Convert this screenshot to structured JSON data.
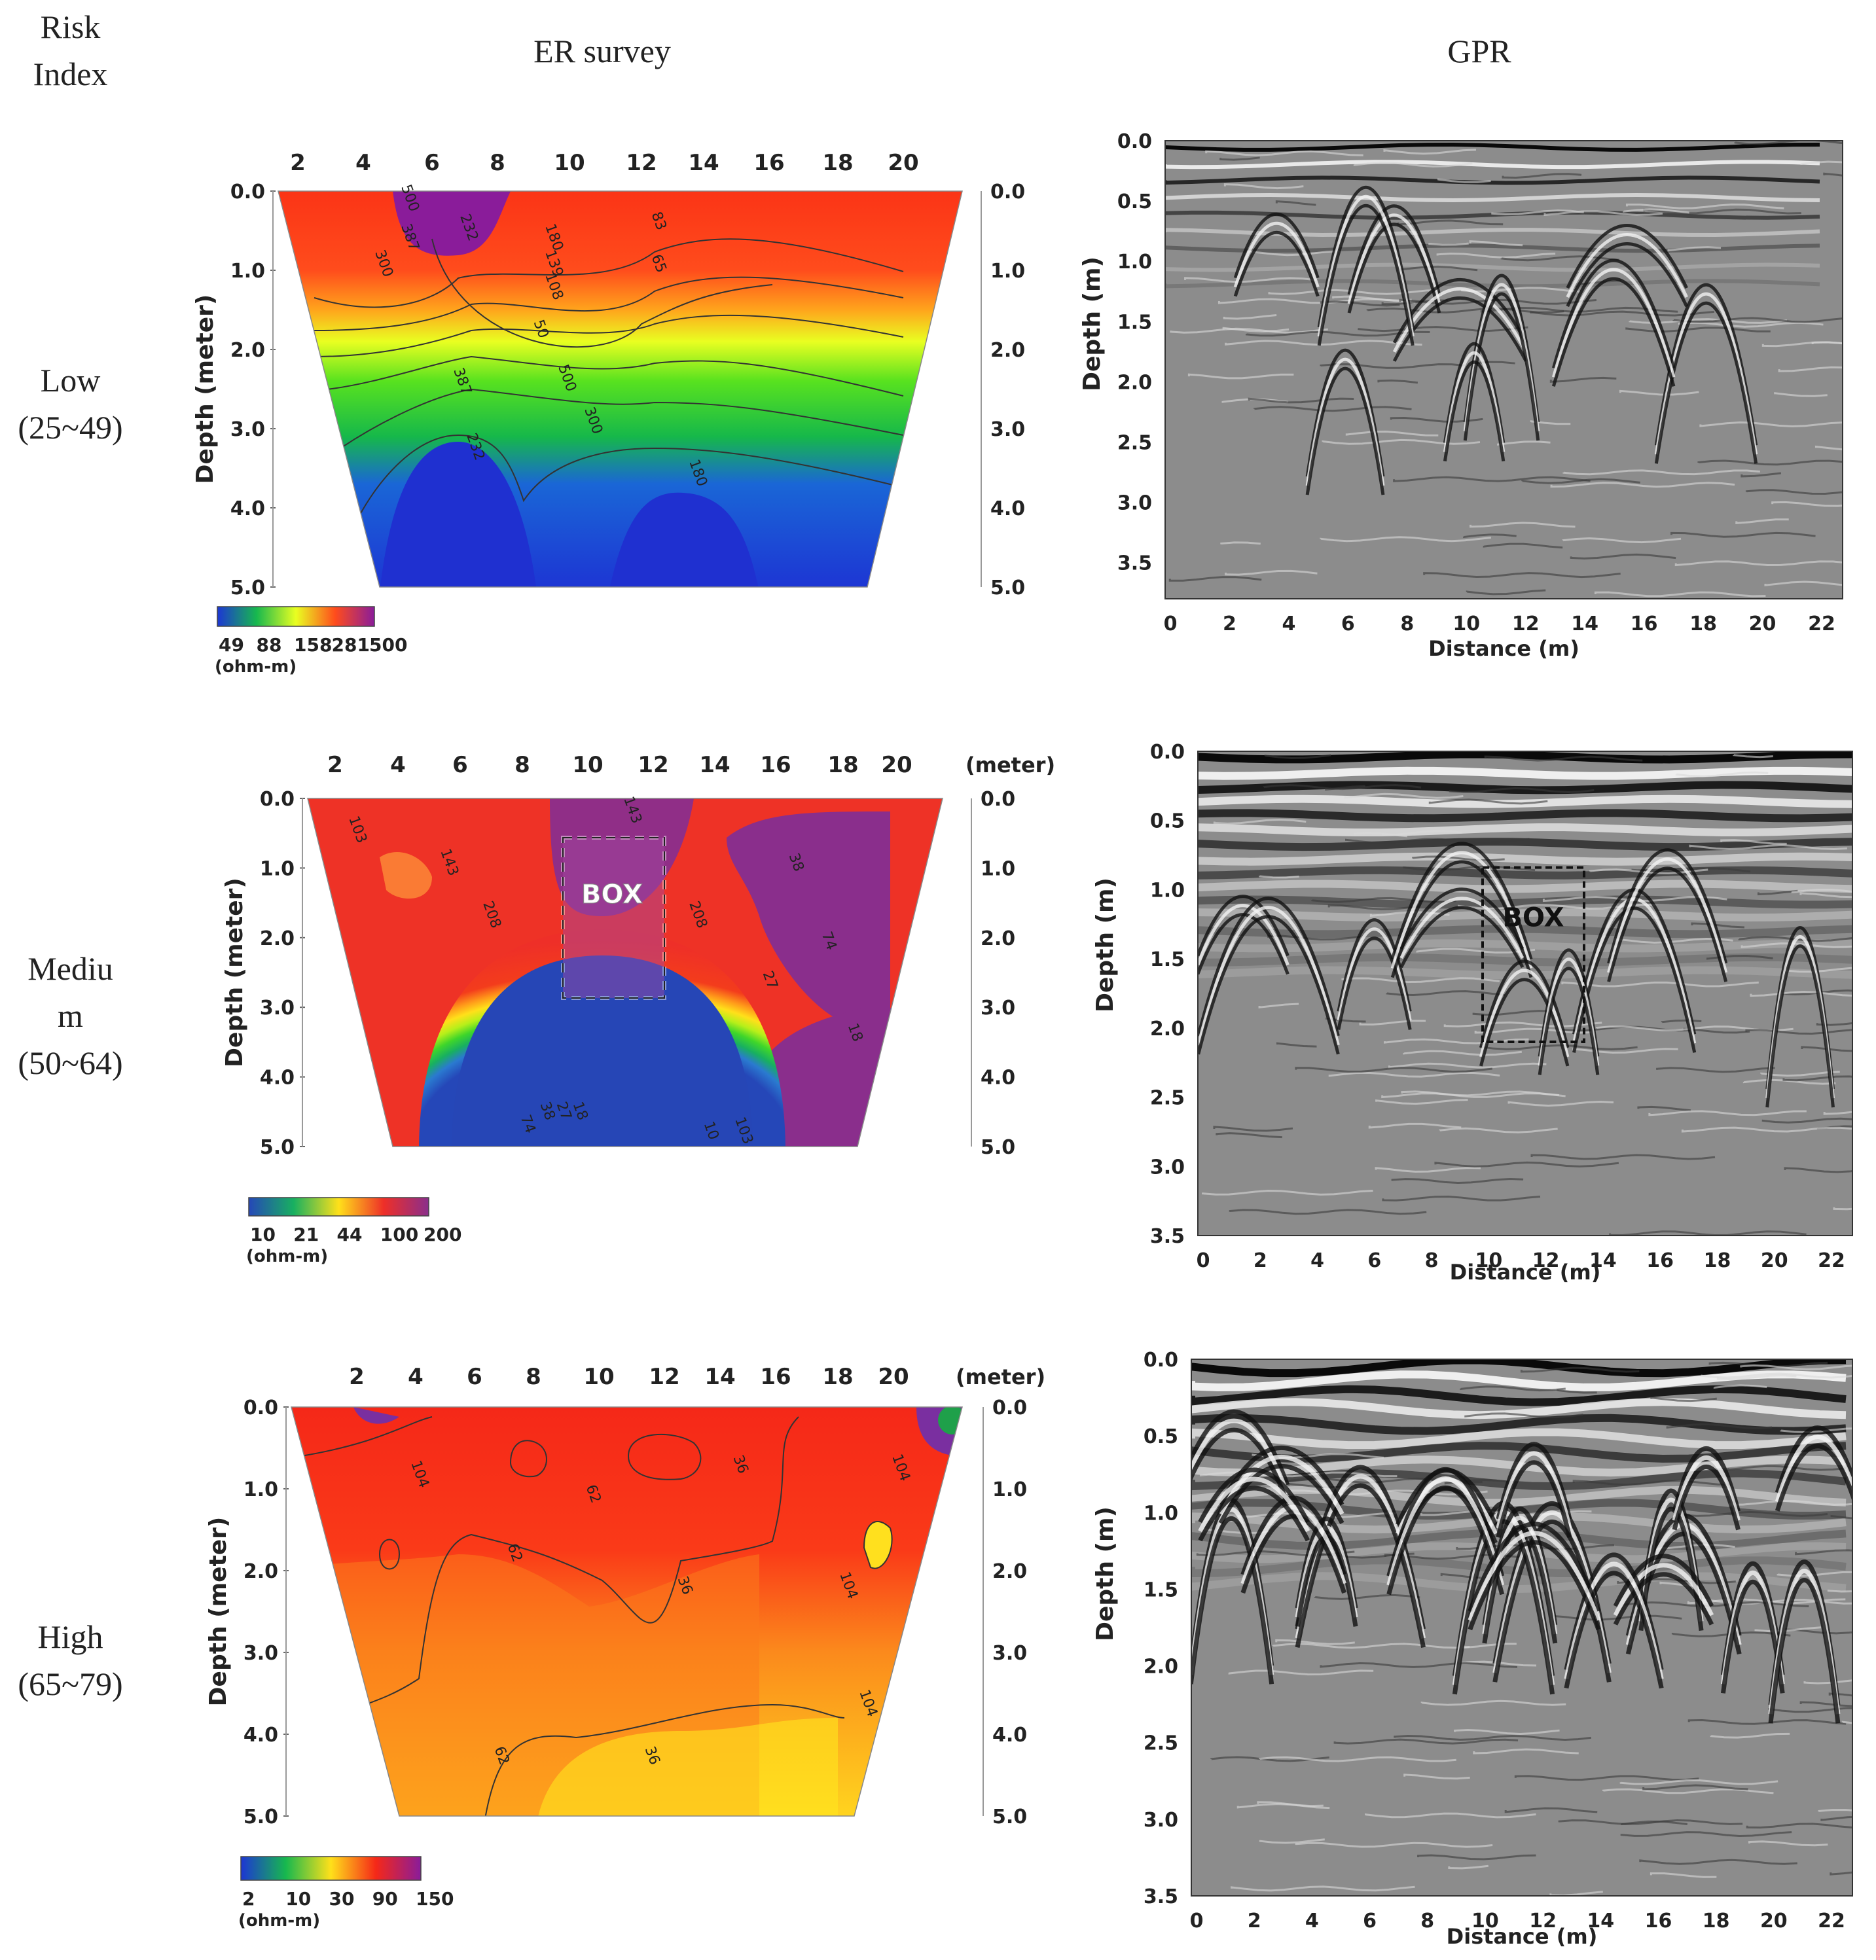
{
  "headers": {
    "risk_line1": "Risk",
    "risk_line2": "Index",
    "er": "ER survey",
    "gpr": "GPR"
  },
  "rows": [
    {
      "risk": [
        "Low",
        "(25~49)"
      ],
      "er": {
        "top_ticks": [
          "2",
          "4",
          "6",
          "8",
          "10",
          "12",
          "14",
          "16",
          "18",
          "20"
        ],
        "top_unit": "",
        "depth_ticks_left": [
          "0.0",
          "1.0",
          "2.0",
          "3.0",
          "4.0",
          "5.0"
        ],
        "depth_ticks_right": [
          "0.0",
          "1.0",
          "2.0",
          "3.0",
          "4.0",
          "5.0"
        ],
        "ylabel": "Depth (meter)",
        "legend_ticks": [
          "49",
          "88",
          "158",
          "281",
          "500"
        ],
        "legend_unit": "(ohm-m)",
        "contour_labels": [
          "500",
          "387",
          "300",
          "232",
          "180",
          "139",
          "108",
          "83",
          "65",
          "50"
        ],
        "box_label": ""
      },
      "gpr": {
        "depth_ticks": [
          "0.0",
          "0.5",
          "1.0",
          "1.5",
          "2.0",
          "2.5",
          "3.0",
          "3.5"
        ],
        "x_ticks": [
          "0",
          "2",
          "4",
          "6",
          "8",
          "10",
          "12",
          "14",
          "16",
          "18",
          "20",
          "22"
        ],
        "xlabel": "Distance (m)",
        "ylabel": "Depth (m)",
        "box_label": ""
      }
    },
    {
      "risk": [
        "Mediu",
        "m",
        "(50~64)"
      ],
      "er": {
        "top_ticks": [
          "2",
          "4",
          "6",
          "8",
          "10",
          "12",
          "14",
          "16",
          "18",
          "20"
        ],
        "top_unit": "(meter)",
        "depth_ticks_left": [
          "0.0",
          "1.0",
          "2.0",
          "3.0",
          "4.0",
          "5.0"
        ],
        "depth_ticks_right": [
          "0.0",
          "1.0",
          "2.0",
          "3.0",
          "4.0",
          "5.0"
        ],
        "ylabel": "Depth (meter)",
        "legend_ticks": [
          "10",
          "21",
          "44",
          "100",
          "200"
        ],
        "legend_unit": "(ohm-m)",
        "contour_labels": [
          "103",
          "143",
          "208",
          "74",
          "38",
          "27",
          "18",
          "10"
        ],
        "box_label": "BOX"
      },
      "gpr": {
        "depth_ticks": [
          "0.0",
          "0.5",
          "1.0",
          "1.5",
          "2.0",
          "2.5",
          "3.0",
          "3.5"
        ],
        "x_ticks": [
          "0",
          "2",
          "4",
          "6",
          "8",
          "10",
          "12",
          "14",
          "16",
          "18",
          "20",
          "22"
        ],
        "xlabel": "Distance (m)",
        "ylabel": "Depth (m)",
        "box_label": "BOX"
      }
    },
    {
      "risk": [
        "High",
        "(65~79)"
      ],
      "er": {
        "top_ticks": [
          "2",
          "4",
          "6",
          "8",
          "10",
          "12",
          "14",
          "16",
          "18",
          "20"
        ],
        "top_unit": "(meter)",
        "depth_ticks_left": [
          "0.0",
          "1.0",
          "2.0",
          "3.0",
          "4.0",
          "5.0"
        ],
        "depth_ticks_right": [
          "0.0",
          "1.0",
          "2.0",
          "3.0",
          "4.0",
          "5.0"
        ],
        "ylabel": "Depth (meter)",
        "legend_ticks": [
          "2",
          "10",
          "30",
          "90",
          "150"
        ],
        "legend_unit": "(ohm-m)",
        "contour_labels": [
          "104",
          "62",
          "36"
        ],
        "box_label": ""
      },
      "gpr": {
        "depth_ticks": [
          "0.0",
          "0.5",
          "1.0",
          "1.5",
          "2.0",
          "2.5",
          "3.0",
          "3.5"
        ],
        "x_ticks": [
          "0",
          "2",
          "4",
          "6",
          "8",
          "10",
          "12",
          "14",
          "16",
          "18",
          "20",
          "22"
        ],
        "xlabel": "Distance (m)",
        "ylabel": "Depth (m)",
        "box_label": ""
      }
    }
  ]
}
